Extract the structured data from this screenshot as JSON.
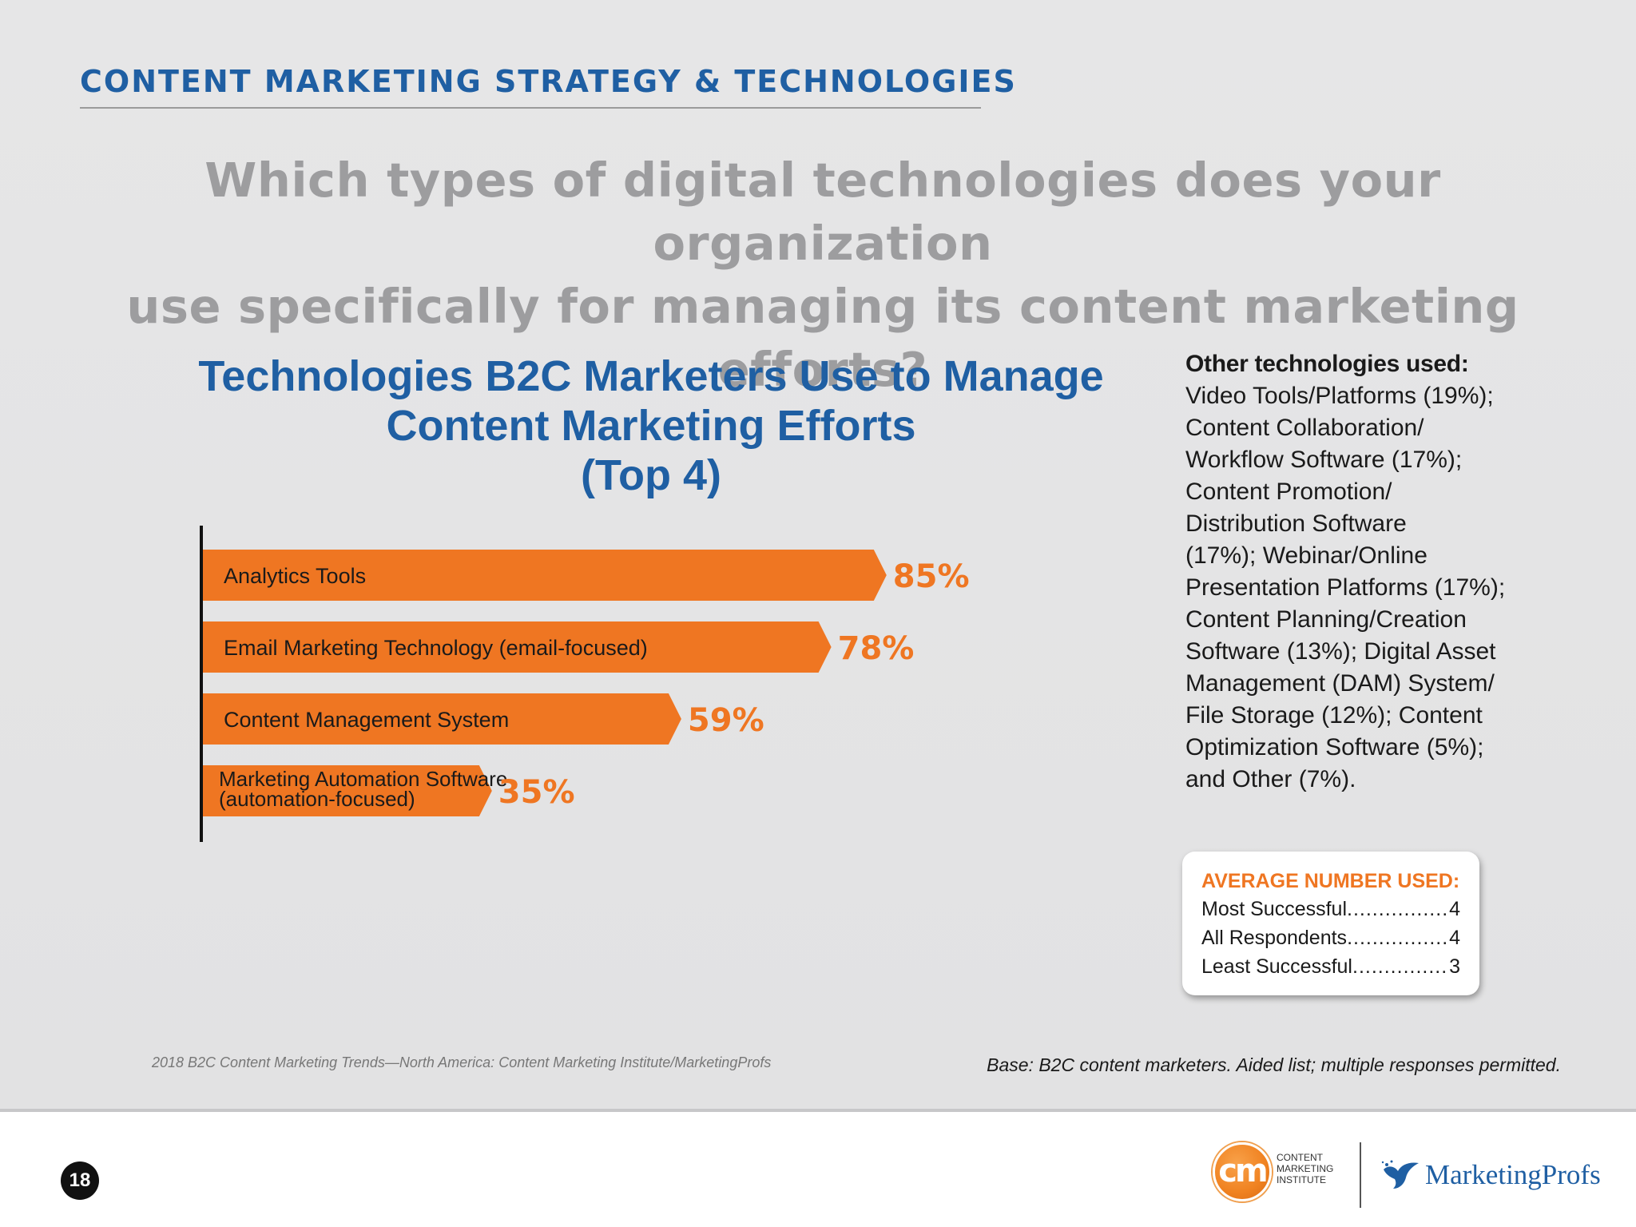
{
  "header": {
    "section_title": "CONTENT MARKETING STRATEGY & TECHNOLOGIES",
    "question_line1": "Which types of digital technologies does your organization",
    "question_line2": "use specifically for managing its content marketing efforts?"
  },
  "colors": {
    "accent_blue": "#1f5fa3",
    "bar_orange": "#ef7622",
    "question_gray": "#9d9d9f"
  },
  "chart_data": {
    "type": "bar",
    "orientation": "horizontal",
    "title_lines": [
      "Technologies B2C Marketers Use to Manage",
      "Content Marketing Efforts",
      "(Top 4)"
    ],
    "categories": [
      [
        "Analytics Tools"
      ],
      [
        "Email Marketing Technology (email-focused)"
      ],
      [
        "Content Management System"
      ],
      [
        "Marketing Automation Software",
        "(automation-focused)"
      ]
    ],
    "values": [
      85,
      78,
      59,
      35
    ],
    "value_labels": [
      "85%",
      "78%",
      "59%",
      "35%"
    ],
    "unit": "%",
    "xlim": [
      0,
      100
    ],
    "grid": false,
    "legend": "none"
  },
  "other_technologies": {
    "heading": "Other technologies used:",
    "lines": [
      "Video Tools/Platforms (19%);",
      "Content Collaboration/",
      "Workflow Software (17%);",
      "Content Promotion/",
      "Distribution Software",
      "(17%); Webinar/Online",
      "Presentation Platforms (17%);",
      "Content Planning/Creation",
      "Software (13%); Digital Asset",
      "Management (DAM) System/",
      "File Storage (12%); Content",
      "Optimization Software (5%);",
      "and Other (7%)."
    ]
  },
  "average_box": {
    "title": "AVERAGE NUMBER USED:",
    "rows": [
      {
        "label": "Most Successful",
        "dots": "..................................",
        "value": "4"
      },
      {
        "label": "All Respondents",
        "dots": "..................................",
        "value": "4"
      },
      {
        "label": "Least Successful",
        "dots": "..................................",
        "value": "3"
      }
    ]
  },
  "footer": {
    "source": "2018 B2C Content Marketing Trends—North America: Content Marketing Institute/MarketingProfs",
    "base_note": "Base: B2C content marketers. Aided list; multiple responses permitted.",
    "page_number": "18",
    "cmi_logo": {
      "mark": "cm",
      "lines": [
        "CONTENT",
        "MARKETING",
        "INSTITUTE"
      ]
    },
    "mp_logo": {
      "text": "MarketingProfs",
      "icon": "bird-icon"
    }
  }
}
